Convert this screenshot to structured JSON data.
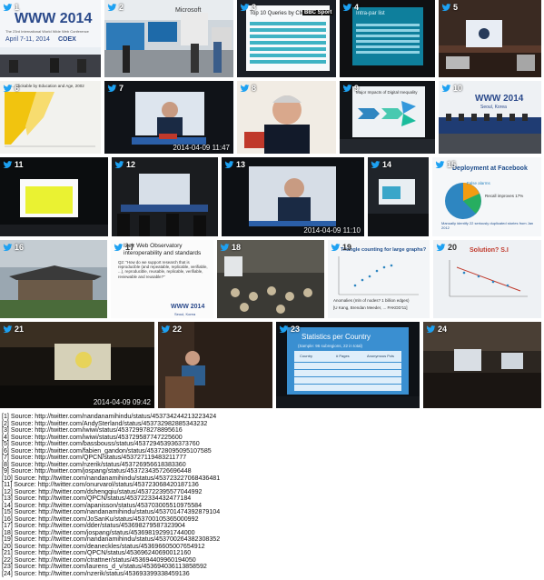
{
  "tiles": [
    {
      "num": "1",
      "title": "WWW 2014",
      "subtitle": "The 23rd International World Wide Web Conference",
      "date": "April 7-11, 2014",
      "venue": "COEX"
    },
    {
      "num": "2",
      "sign": "Microsoft"
    },
    {
      "num": "3",
      "title": "Top 10 Queries by Clicks",
      "logo": "BBC Sport"
    },
    {
      "num": "4",
      "title": "Intra-par list"
    },
    {
      "num": "5"
    },
    {
      "num": "6",
      "title": "... Clickable by Education and Age, 2002"
    },
    {
      "num": "7",
      "timestamp": "2014-04-09 11:47"
    },
    {
      "num": "8"
    },
    {
      "num": "9",
      "title": "Major Impacts of Digital Inequality"
    },
    {
      "num": "10",
      "title": "WWW 2014",
      "subtitle": "Seoul, Korea"
    },
    {
      "num": "11"
    },
    {
      "num": "12"
    },
    {
      "num": "13",
      "timestamp": "2014-04-09 11:10"
    },
    {
      "num": "14"
    },
    {
      "num": "15",
      "title": "Deployment at Facebook",
      "label1": "False alarms",
      "label2": "Recall improves 17%",
      "caption": "Manually identify 22 seriously duplicated stories from Jan 2012"
    },
    {
      "num": "16"
    },
    {
      "num": "17",
      "title": "I2el: Web Observatory interoperability and standards",
      "body": "Q2: \"How do we support research that is reproducible (and repeatable, replicable, verifiable, ...), reproducible, reusable, replicable, verifiable, reviewable and reusable?\"",
      "logo": "WWW 2014",
      "logo_sub": "Seoul, Korea"
    },
    {
      "num": "18"
    },
    {
      "num": "19",
      "title": "Triangle counting for large graphs?",
      "footer": "Anomalies (mln of nodes? 1 billion edges)",
      "credit": "[U Kang, Brendan Meeder, ... PAKDD'11]"
    },
    {
      "num": "20",
      "title": "Solution? S.I"
    },
    {
      "num": "21",
      "timestamp": "2014-04-09 09:42"
    },
    {
      "num": "22"
    },
    {
      "num": "23",
      "title": "Statistics per Country",
      "subtitle": "(Sample: 96 subregions, 22 in total)",
      "headers": [
        "Country",
        "# Pages",
        "Anonymous Pcts"
      ]
    },
    {
      "num": "24"
    }
  ],
  "sources": [
    "[1]  Source: http://twitter.com/nandanamihindu/status/453734244213223424",
    "[2]  Source: http://twitter.com/AndySterland/status/453732982885343232",
    "[3]  Source: http://twitter.com/iwiwi/status/453729978278895616",
    "[4]  Source: http://twitter.com/iwiwi/status/453729587747225600",
    "[5]  Source: http://twitter.com/bassbouss/status/453729453936373760",
    "[6]  Source: http://twitter.com/fabien_gandon/status/453728095095107585",
    "[7]  Source: http://twitter.com/QPCN/status/453727119483211777",
    "[8]  Source: http://twitter.com/nzerik/status/453726956618383360",
    "[9]  Source: http://twitter.com/jospang/status/453723435726696448",
    "[10] Source: http://twitter.com/nandanamihindu/status/453723227068436481",
    "[11] Source: http://twitter.com/onurvarol/status/453723068420187136",
    "[12] Source: http://twitter.com/dshengqiu/status/453722395577044992",
    "[13] Source: http://twitter.com/QPCN/status/453722334432477184",
    "[14] Source: http://twitter.com/apanisson/status/453703005510975584",
    "[15] Source: http://twitter.com/nandanamihindu/status/453701474392879104",
    "[16] Source: http://twitter.com/JoSanKu/status/453700105365000992",
    "[17] Source: http://twitter.com/dder/status/453698279587323904",
    "[18] Source: http://twitter.com/jospang/status/453698192991744000",
    "[19] Source: http://twitter.com/nandanamihindu/status/453700264382308352",
    "[20] Source: http://twitter.com/deaneckles/status/453696605007654912",
    "[21] Source: http://twitter.com/QPCN/status/453696240690012160",
    "[22] Source: http://twitter.com/ctrattner/status/453694409960194050",
    "[23] Source: http://twitter.com/laurens_d_v/status/453694036113858592",
    "[24] Source: http://twitter.com/nzerik/status/453693399338459136"
  ]
}
